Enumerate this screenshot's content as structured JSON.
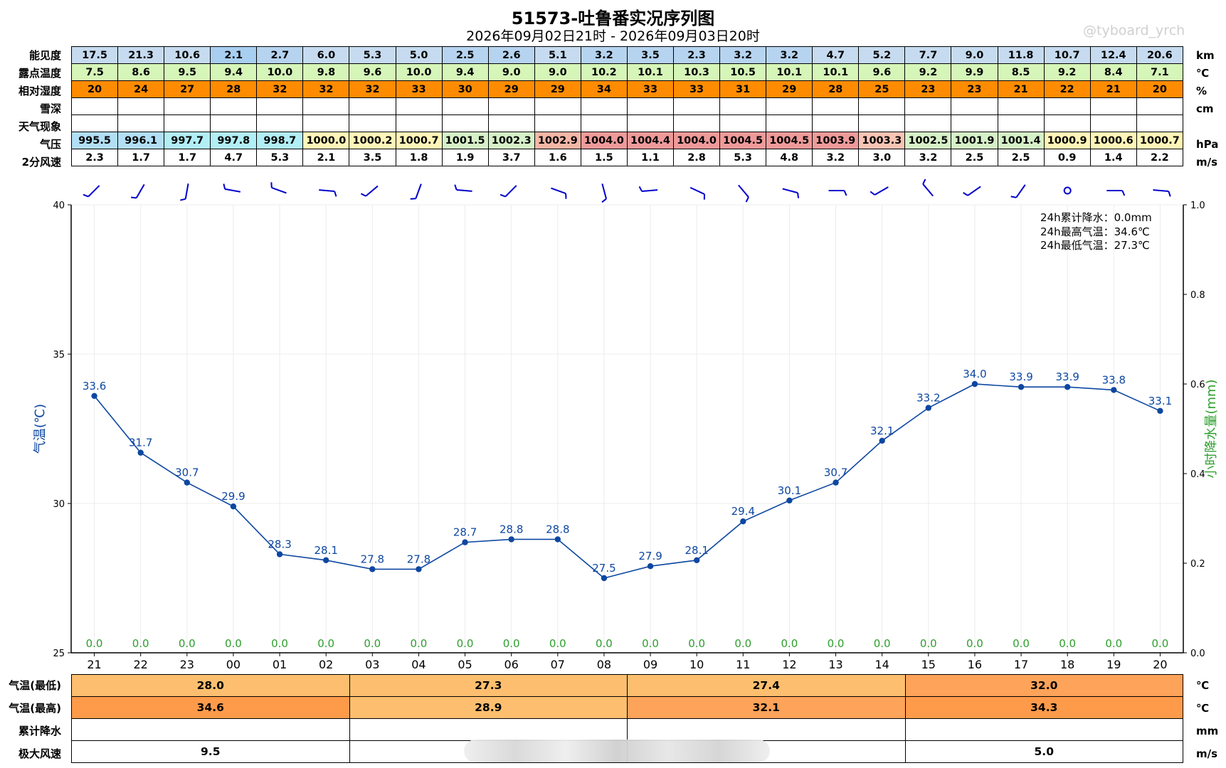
{
  "title": "51573-吐鲁番实况序列图",
  "subtitle": "2026年09月02日21时 - 2026年09月03日20时",
  "watermark": "@tyboard_yrch",
  "hours": [
    "21",
    "22",
    "23",
    "00",
    "01",
    "02",
    "03",
    "04",
    "05",
    "06",
    "07",
    "08",
    "09",
    "10",
    "11",
    "12",
    "13",
    "14",
    "15",
    "16",
    "17",
    "18",
    "19",
    "20"
  ],
  "top_table": {
    "rows": [
      {
        "label": "能见度",
        "unit": "km",
        "values": [
          "17.5",
          "21.3",
          "10.6",
          "2.1",
          "2.7",
          "6.0",
          "5.3",
          "5.0",
          "2.5",
          "2.6",
          "5.1",
          "3.2",
          "3.5",
          "2.3",
          "3.2",
          "3.2",
          "4.7",
          "5.2",
          "7.7",
          "9.0",
          "11.8",
          "10.7",
          "12.4",
          "20.6"
        ]
      },
      {
        "label": "露点温度",
        "unit": "℃",
        "values": [
          "7.5",
          "8.6",
          "9.5",
          "9.4",
          "10.0",
          "9.8",
          "9.6",
          "10.0",
          "9.4",
          "9.0",
          "9.0",
          "10.2",
          "10.1",
          "10.3",
          "10.5",
          "10.1",
          "10.1",
          "9.6",
          "9.2",
          "9.9",
          "8.5",
          "9.2",
          "8.4",
          "7.1"
        ]
      },
      {
        "label": "相对湿度",
        "unit": "%",
        "values": [
          "20",
          "24",
          "27",
          "28",
          "32",
          "32",
          "32",
          "33",
          "30",
          "29",
          "29",
          "34",
          "33",
          "33",
          "31",
          "29",
          "28",
          "25",
          "23",
          "23",
          "21",
          "22",
          "21",
          "20"
        ]
      },
      {
        "label": "雪深",
        "unit": "cm",
        "values": [
          "",
          "",
          "",
          "",
          "",
          "",
          "",
          "",
          "",
          "",
          "",
          "",
          "",
          "",
          "",
          "",
          "",
          "",
          "",
          "",
          "",
          "",
          "",
          ""
        ]
      },
      {
        "label": "天气现象",
        "unit": "",
        "values": [
          "",
          "",
          "",
          "",
          "",
          "",
          "",
          "",
          "",
          "",
          "",
          "",
          "",
          "",
          "",
          "",
          "",
          "",
          "",
          "",
          "",
          "",
          "",
          ""
        ]
      },
      {
        "label": "气压",
        "unit": "hPa",
        "values": [
          "995.5",
          "996.1",
          "997.7",
          "997.8",
          "998.7",
          "1000.0",
          "1000.2",
          "1000.7",
          "1001.5",
          "1002.3",
          "1002.9",
          "1004.0",
          "1004.4",
          "1004.0",
          "1004.5",
          "1004.5",
          "1003.9",
          "1003.3",
          "1002.5",
          "1001.9",
          "1001.4",
          "1000.9",
          "1000.6",
          "1000.7"
        ]
      },
      {
        "label": "2分风速",
        "unit": "m/s",
        "values": [
          "2.3",
          "1.7",
          "1.7",
          "4.7",
          "5.3",
          "2.1",
          "3.5",
          "1.8",
          "1.9",
          "3.7",
          "1.6",
          "1.5",
          "1.1",
          "2.8",
          "5.3",
          "4.8",
          "3.2",
          "3.0",
          "3.2",
          "2.5",
          "2.5",
          "0.9",
          "1.4",
          "2.2"
        ]
      }
    ],
    "colors": {
      "visibility": [
        "#c6dbef",
        "#c6dbef",
        "#c6dbef",
        "#a8cef0",
        "#b6d4f0",
        "#c6dbef",
        "#c6dbef",
        "#c6dbef",
        "#b6d4f0",
        "#b6d4f0",
        "#c6dbef",
        "#b6d4f0",
        "#b6d4f0",
        "#b6d4f0",
        "#b6d4f0",
        "#b6d4f0",
        "#c6dbef",
        "#c6dbef",
        "#c6dbef",
        "#c6dbef",
        "#c6dbef",
        "#c6dbef",
        "#c6dbef",
        "#c6dbef"
      ],
      "dewpoint": "#d6f5b8",
      "humidity": "#ff8c00",
      "pressure": [
        "#b2dff5",
        "#b2dff5",
        "#b2eef5",
        "#b2eef5",
        "#b2eef5",
        "#fff5b8",
        "#fff5b8",
        "#fff5b8",
        "#d6f0c8",
        "#d6f0c8",
        "#f4b6a6",
        "#ef9a9a",
        "#ef9a9a",
        "#ef9a9a",
        "#ef9a9a",
        "#ef9a9a",
        "#ef9a9a",
        "#f8c4b4",
        "#d6f0c8",
        "#d6f0c8",
        "#d6f0c8",
        "#fff5b8",
        "#fff5b8",
        "#fff5b8"
      ]
    }
  },
  "wind_directions_deg": [
    225,
    210,
    190,
    280,
    290,
    95,
    230,
    200,
    275,
    225,
    110,
    165,
    265,
    115,
    140,
    105,
    90,
    240,
    320,
    235,
    215,
    null,
    90,
    95
  ],
  "stats": [
    {
      "label": "24h累计降水：",
      "value": "0.0mm"
    },
    {
      "label": "24h最高气温：",
      "value": "34.6℃"
    },
    {
      "label": "24h最低气温：",
      "value": "27.3℃"
    }
  ],
  "chart_data": {
    "type": "line",
    "x": [
      "21",
      "22",
      "23",
      "00",
      "01",
      "02",
      "03",
      "04",
      "05",
      "06",
      "07",
      "08",
      "09",
      "10",
      "11",
      "12",
      "13",
      "14",
      "15",
      "16",
      "17",
      "18",
      "19",
      "20"
    ],
    "series": [
      {
        "name": "气温",
        "values": [
          33.6,
          31.7,
          30.7,
          29.9,
          28.3,
          28.1,
          27.8,
          27.8,
          28.7,
          28.8,
          28.8,
          27.5,
          27.9,
          28.1,
          29.4,
          30.1,
          30.7,
          32.1,
          33.2,
          34.0,
          33.9,
          33.9,
          33.8,
          33.1
        ],
        "color": "#0d47a1"
      },
      {
        "name": "小时降水量",
        "values": [
          0.0,
          0.0,
          0.0,
          0.0,
          0.0,
          0.0,
          0.0,
          0.0,
          0.0,
          0.0,
          0.0,
          0.0,
          0.0,
          0.0,
          0.0,
          0.0,
          0.0,
          0.0,
          0.0,
          0.0,
          0.0,
          0.0,
          0.0,
          0.0
        ],
        "color": "#2e9e2e"
      }
    ],
    "ylabel": "气温(℃)",
    "y2label": "小时降水量(mm)",
    "ylim": [
      25,
      40
    ],
    "yticks": [
      25,
      30,
      35,
      40
    ],
    "y2lim": [
      0.0,
      1.0
    ],
    "y2ticks": [
      "0.0",
      "0.2",
      "0.4",
      "0.6",
      "0.8",
      "1.0"
    ],
    "grid": true
  },
  "bottom_table": {
    "rows": [
      {
        "label": "气温(最低)",
        "unit": "℃",
        "values": [
          "28.0",
          "27.3",
          "27.4",
          "32.0"
        ],
        "colors": [
          "#fdbf6f",
          "#fdbf6f",
          "#fdbf6f",
          "#fda35a"
        ]
      },
      {
        "label": "气温(最高)",
        "unit": "℃",
        "values": [
          "34.6",
          "28.9",
          "32.1",
          "34.3"
        ],
        "colors": [
          "#fd9b4b",
          "#fdbf6f",
          "#fda35a",
          "#fd9b4b"
        ]
      },
      {
        "label": "累计降水",
        "unit": "mm",
        "values": [
          "",
          "",
          "",
          ""
        ],
        "colors": [
          "#ffffff",
          "#ffffff",
          "#ffffff",
          "#ffffff"
        ]
      },
      {
        "label": "极大风速",
        "unit": "m/s",
        "values": [
          "9.5",
          "",
          "",
          "5.0"
        ],
        "colors": [
          "#ffffff",
          "#ffffff",
          "#ffffff",
          "#ffffff"
        ]
      }
    ]
  }
}
